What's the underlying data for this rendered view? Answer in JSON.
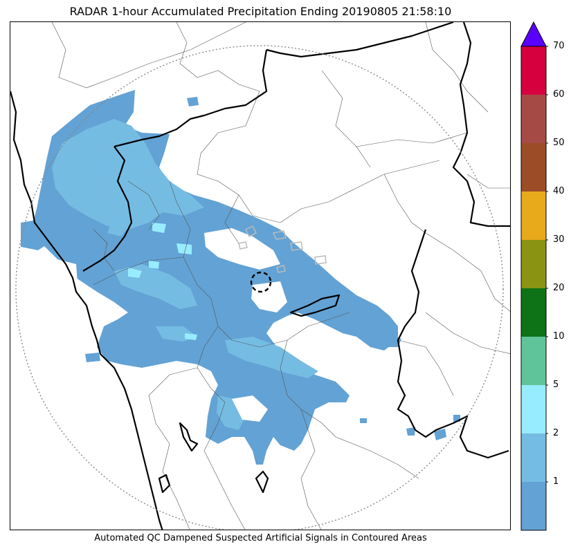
{
  "header": {
    "title": "RADAR 1-hour Accumulated Precipitation Ending 20190805 21:58:10"
  },
  "footer": {
    "caption": "Automated QC Dampened Suspected Artificial Signals in Contoured Areas"
  },
  "map": {
    "colors": {
      "coast_border": "#000000",
      "district_lines": "#555555",
      "range_ring": "#888888",
      "radar_site_marker": "#000000",
      "qc_contour": "#bbbbbb"
    },
    "rain_colors": {
      "lt1": "#63a2d4",
      "1to2": "#75bce3",
      "2to5": "#98ecff"
    }
  },
  "colorbar": {
    "ticks": [
      "1",
      "2",
      "5",
      "10",
      "20",
      "30",
      "40",
      "50",
      "60",
      "70"
    ],
    "segments": [
      {
        "color": "#63a2d4"
      },
      {
        "color": "#75bce3"
      },
      {
        "color": "#98ecff"
      },
      {
        "color": "#60c49a"
      },
      {
        "color": "#0e7317"
      },
      {
        "color": "#8b9313"
      },
      {
        "color": "#e8a91b"
      },
      {
        "color": "#9c4d27"
      },
      {
        "color": "#a64a46"
      },
      {
        "color": "#d6003f"
      }
    ],
    "extend_color": "#5b00ff"
  }
}
